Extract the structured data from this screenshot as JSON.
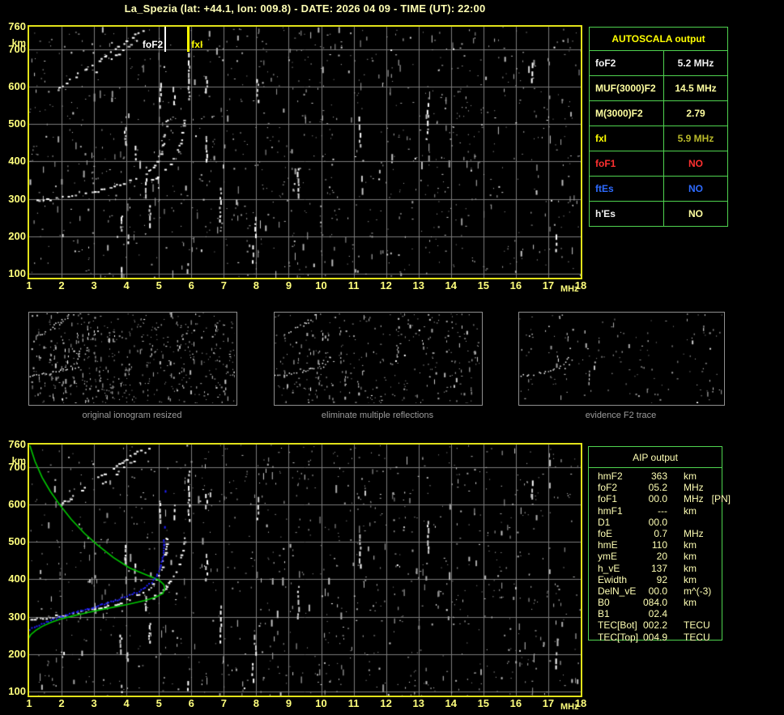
{
  "title": "La_Spezia (lat: +44.1, lon: 009.8) - DATE: 2026 04 09 - TIME (UT): 22:00",
  "axes": {
    "x_ticks": [
      1,
      2,
      3,
      4,
      5,
      6,
      7,
      8,
      9,
      10,
      11,
      12,
      13,
      14,
      15,
      16,
      17,
      18
    ],
    "y_ticks": [
      760,
      700,
      600,
      500,
      400,
      300,
      200,
      100
    ],
    "x_unit": "MHz",
    "y_unit": "km"
  },
  "top_plot": {
    "fof2_label": "foF2",
    "fxi_label": "fxI",
    "fof2_marker_mhz": 5.2,
    "fxi_marker_mhz": 5.9
  },
  "panels": [
    {
      "caption": "original ionogram resized"
    },
    {
      "caption": "eliminate multiple reflections"
    },
    {
      "caption": "evidence F2 trace"
    }
  ],
  "autoscala_table": {
    "header": "AUTOSCALA output",
    "header_color": "#ffff00",
    "rows": [
      {
        "label": "foF2",
        "value": "5.2 MHz",
        "label_color": "#f2f2f2",
        "value_color": "#f2f2f2"
      },
      {
        "label": "MUF(3000)F2",
        "value": "14.5 MHz",
        "label_color": "#ffffa0",
        "value_color": "#ffffa0"
      },
      {
        "label": "M(3000)F2",
        "value": "2.79",
        "label_color": "#ffffa0",
        "value_color": "#ffffa0"
      },
      {
        "label": "fxI",
        "value": "5.9 MHz",
        "label_color": "#ffff00",
        "value_color": "#b9b92a"
      },
      {
        "label": "foF1",
        "value": "NO",
        "label_color": "#ff3030",
        "value_color": "#ff3030"
      },
      {
        "label": "ftEs",
        "value": "NO",
        "label_color": "#2e6bff",
        "value_color": "#2e6bff"
      },
      {
        "label": "h'Es",
        "value": "NO",
        "label_color": "#f2f2f2",
        "value_color": "#ffffa0"
      }
    ]
  },
  "aip_table": {
    "header": "AIP output",
    "rows": [
      {
        "label": "hmF2",
        "value": "363",
        "unit": "km",
        "extra": ""
      },
      {
        "label": "foF2",
        "value": "05.2",
        "unit": "MHz",
        "extra": ""
      },
      {
        "label": "foF1",
        "value": "00.0",
        "unit": "MHz",
        "extra": "[PN]"
      },
      {
        "label": "hmF1",
        "value": "---",
        "unit": "km",
        "extra": ""
      },
      {
        "label": "D1",
        "value": "00.0",
        "unit": "",
        "extra": ""
      },
      {
        "label": "foE",
        "value": "0.7",
        "unit": "MHz",
        "extra": ""
      },
      {
        "label": "hmE",
        "value": "110",
        "unit": "km",
        "extra": ""
      },
      {
        "label": "ymE",
        "value": "20",
        "unit": "km",
        "extra": ""
      },
      {
        "label": "h_vE",
        "value": "137",
        "unit": "km",
        "extra": ""
      },
      {
        "label": "Ewidth",
        "value": "92",
        "unit": "km",
        "extra": ""
      },
      {
        "label": "DelN_vE",
        "value": "00.0",
        "unit": "m^(-3)",
        "extra": ""
      },
      {
        "label": "B0",
        "value": "084.0",
        "unit": "km",
        "extra": ""
      },
      {
        "label": "B1",
        "value": "02.4",
        "unit": "",
        "extra": ""
      },
      {
        "label": "TEC[Bot]",
        "value": "002.2",
        "unit": "TECU",
        "extra": ""
      },
      {
        "label": "TEC[Top]",
        "value": "004.9",
        "unit": "TECU",
        "extra": ""
      }
    ]
  },
  "colors": {
    "title_text": "#ffffb4",
    "tick_text": "#ffff7d",
    "plot_border": "#e2e21a",
    "grid": "#7b7b7b",
    "table_border": "#4fd34f",
    "caption_text": "#9c9c9c",
    "panel_border": "#8f8f8f",
    "echo_white": "#ffffff",
    "profile_green": "#00c800",
    "fit_blue": "#2020ff",
    "fof2_marker": "#ffffff",
    "fxi_marker": "#ffff00"
  },
  "chart_data": [
    {
      "type": "scatter",
      "title": "autoscaled ionogram (top panel)",
      "xlabel": "MHz",
      "ylabel": "km",
      "xlim": [
        1,
        18
      ],
      "ylim": [
        100,
        760
      ],
      "grid": true,
      "annotations": [
        {
          "label": "foF2",
          "x": 5.2,
          "color": "#ffffff"
        },
        {
          "label": "fxI",
          "x": 5.9,
          "color": "#ffff00"
        }
      ],
      "series": [
        {
          "name": "F2 ordinary trace",
          "points": [
            [
              1.05,
              293
            ],
            [
              1.4,
              298
            ],
            [
              1.8,
              303
            ],
            [
              2.2,
              308
            ],
            [
              2.6,
              314
            ],
            [
              3.0,
              321
            ],
            [
              3.4,
              330
            ],
            [
              3.8,
              340
            ],
            [
              4.1,
              349
            ],
            [
              4.4,
              361
            ],
            [
              4.65,
              375
            ],
            [
              4.85,
              392
            ],
            [
              5.0,
              413
            ],
            [
              5.08,
              436
            ],
            [
              5.14,
              460
            ],
            [
              5.18,
              484
            ],
            [
              5.21,
              506
            ],
            [
              5.23,
              521
            ]
          ]
        },
        {
          "name": "F2 extraordinary trace",
          "points": [
            [
              4.78,
              352
            ],
            [
              5.02,
              366
            ],
            [
              5.22,
              383
            ],
            [
              5.4,
              403
            ],
            [
              5.54,
              426
            ],
            [
              5.64,
              452
            ],
            [
              5.71,
              478
            ],
            [
              5.76,
              504
            ],
            [
              5.79,
              523
            ]
          ]
        },
        {
          "name": "second hop O trace",
          "points": [
            [
              1.85,
              593
            ],
            [
              2.15,
              613
            ],
            [
              2.5,
              635
            ],
            [
              2.85,
              656
            ],
            [
              3.2,
              677
            ],
            [
              3.55,
              698
            ],
            [
              3.9,
              719
            ],
            [
              4.25,
              740
            ],
            [
              4.55,
              757
            ]
          ]
        },
        {
          "name": "second hop X trace",
          "points": [
            [
              3.05,
              643
            ],
            [
              3.4,
              667
            ],
            [
              3.75,
              691
            ],
            [
              4.1,
              714
            ],
            [
              4.45,
              738
            ],
            [
              4.78,
              757
            ]
          ]
        },
        {
          "name": "RFI streaks",
          "segments": [
            [
              2.05,
              192,
              206
            ],
            [
              3.83,
              212,
              252
            ],
            [
              3.97,
              440,
              492
            ],
            [
              4.05,
              175,
              205
            ],
            [
              4.27,
              400,
              442
            ],
            [
              4.6,
              312,
              355
            ],
            [
              4.72,
              233,
              283
            ],
            [
              5.05,
              550,
              610
            ],
            [
              5.47,
              556,
              600
            ],
            [
              5.93,
              560,
              690
            ],
            [
              6.47,
              400,
              468
            ],
            [
              6.47,
              588,
              628
            ],
            [
              6.9,
              232,
              330
            ],
            [
              7.9,
              132,
              176
            ],
            [
              7.97,
              206,
              252
            ],
            [
              8.05,
              555,
              620
            ],
            [
              9.3,
              300,
              382
            ],
            [
              11.2,
              440,
              520
            ],
            [
              13.3,
              476,
              556
            ],
            [
              16.5,
              620,
              664
            ],
            [
              17.25,
              160,
              205
            ],
            [
              5.9,
              100,
              128
            ],
            [
              3.85,
              100,
              118
            ]
          ]
        }
      ]
    },
    {
      "type": "scatter",
      "title": "ionogram with AIP inversion (bottom panel); echo traces identical to top panel",
      "xlabel": "MHz",
      "ylabel": "km",
      "xlim": [
        1,
        18
      ],
      "ylim": [
        100,
        760
      ],
      "grid": true,
      "series": [
        {
          "name": "electron density profile (green)",
          "points": [
            [
              1.02,
              758
            ],
            [
              1.18,
              715
            ],
            [
              1.4,
              672
            ],
            [
              1.65,
              635
            ],
            [
              1.95,
              598
            ],
            [
              2.3,
              560
            ],
            [
              2.7,
              523
            ],
            [
              3.1,
              492
            ],
            [
              3.6,
              458
            ],
            [
              4.1,
              430
            ],
            [
              4.6,
              412
            ],
            [
              5.0,
              398
            ],
            [
              5.15,
              386
            ],
            [
              5.18,
              375
            ],
            [
              5.12,
              362
            ],
            [
              4.9,
              352
            ],
            [
              4.55,
              343
            ],
            [
              4.0,
              332
            ],
            [
              3.4,
              322
            ],
            [
              2.8,
              311
            ],
            [
              2.3,
              301
            ],
            [
              1.95,
              293
            ],
            [
              1.65,
              284
            ],
            [
              1.4,
              274
            ],
            [
              1.2,
              263
            ],
            [
              1.05,
              252
            ],
            [
              0.97,
              240
            ]
          ]
        },
        {
          "name": "autoscaled trace fit (blue)",
          "points": [
            [
              1.0,
              268
            ],
            [
              1.2,
              276
            ],
            [
              1.5,
              288
            ],
            [
              1.8,
              297
            ],
            [
              2.1,
              305
            ],
            [
              2.5,
              316
            ],
            [
              2.9,
              326
            ],
            [
              3.3,
              336
            ],
            [
              3.7,
              347
            ],
            [
              4.0,
              356
            ],
            [
              4.3,
              367
            ],
            [
              4.55,
              380
            ],
            [
              4.75,
              394
            ],
            [
              4.9,
              410
            ],
            [
              5.0,
              428
            ],
            [
              5.06,
              447
            ],
            [
              5.1,
              466
            ],
            [
              5.12,
              485
            ],
            [
              5.13,
              502
            ],
            [
              5.14,
              512
            ]
          ]
        },
        {
          "name": "autoscaled trace fit isolated points (blue)",
          "points": [
            [
              5.16,
              542
            ],
            [
              5.18,
              638
            ]
          ]
        }
      ]
    }
  ]
}
